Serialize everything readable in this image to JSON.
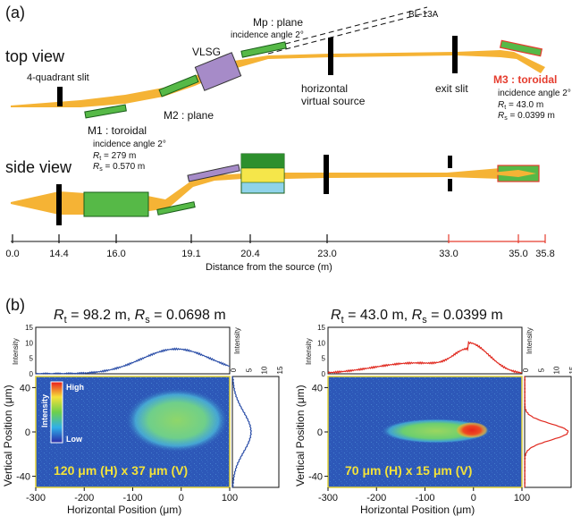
{
  "panel_a": {
    "label": "(a)",
    "top_view": {
      "title": "top view",
      "labels": {
        "quad_slit": "4-quadrant slit",
        "vlsg": "VLSG",
        "mp_line1": "Mp : plane",
        "mp_line2": "incidence angle 2°",
        "bl13a": "BL-13A",
        "m2": "M2 : plane",
        "h_virtual_1": "horizontal",
        "h_virtual_2": "virtual source",
        "exit_slit": "exit slit",
        "m3_title": "M3 : toroidal",
        "m3_angle": "incidence angle 2°",
        "m3_rt": " = 43.0 m",
        "m3_rs": " = 0.0399 m",
        "m1_title": "M1 : toroidal",
        "m1_angle": "incidence angle 2°",
        "m1_rt": " = 279 m",
        "m1_rs": " = 0.570 m",
        "r_sym": "R",
        "sub_t": "t",
        "sub_s": "s"
      }
    },
    "side_view": {
      "title": "side view"
    },
    "axis": {
      "ticks": [
        "0.0",
        "14.4",
        "16.0",
        "19.1",
        "20.4",
        "23.0",
        "33.0",
        "35.0",
        "35.8"
      ],
      "title": "Distance from the source (m)"
    },
    "colors": {
      "beam": "#f5b335",
      "mirror": "#56b947",
      "grating": "#a68bc8",
      "m3": "#e53c2e",
      "slit": "#000000",
      "mirror_dark": "#2d8f2d",
      "screen_blue": "#8fd3ea",
      "screen_yellow": "#f5e64a"
    }
  },
  "panel_b": {
    "label": "(b)",
    "plots": [
      {
        "title_parts": [
          "R",
          "t",
          " = 98.2 m, ",
          "R",
          "s",
          " = 0.0698 m"
        ],
        "size_label": "120 μm (H) x 37 μm (V)",
        "x_axis_label": "Horizontal Position (μm)",
        "y_axis_label": "Vertical Position (μm)",
        "x_ticks": [
          "-300",
          "-200",
          "-100",
          "0",
          "100"
        ],
        "y_ticks": [
          "40",
          "0",
          "-40"
        ],
        "top_profile_label": "Intensity",
        "top_profile_ticks": [
          "15",
          "10",
          "5",
          "0"
        ],
        "side_profile_label": "Intensity",
        "side_profile_ticks": [
          "0",
          "5",
          "10",
          "15"
        ],
        "colorbar_high": "High",
        "colorbar_low": "Low",
        "colorbar_label": "Intensity",
        "line_color": "#2b4ea8",
        "profile_h_center_um": -10,
        "profile_h_fwhm_um": 120,
        "profile_h_peak": 8,
        "profile_v_center_um": 0,
        "profile_v_fwhm_um": 37,
        "profile_v_peak": 6
      },
      {
        "title_parts": [
          "R",
          "t",
          " = 43.0 m, ",
          "R",
          "s",
          " = 0.0399 m"
        ],
        "size_label": "70 μm (H) x 15 μm (V)",
        "x_axis_label": "Horizontal Position (μm)",
        "y_axis_label": "Vertical Position (μm)",
        "x_ticks": [
          "-300",
          "-200",
          "-100",
          "0",
          "100"
        ],
        "y_ticks": [
          "40",
          "0",
          "-40"
        ],
        "top_profile_label": "Intensity",
        "top_profile_ticks": [
          "15",
          "10",
          "5",
          "0"
        ],
        "side_profile_label": "Intensity",
        "side_profile_ticks": [
          "0",
          "5",
          "10",
          "15"
        ],
        "line_color": "#e0281e",
        "profile_h_center_um": -10,
        "profile_h_fwhm_um": 70,
        "profile_h_peak": 10,
        "profile_v_center_um": 0,
        "profile_v_fwhm_um": 15,
        "profile_v_peak": 14
      }
    ]
  }
}
